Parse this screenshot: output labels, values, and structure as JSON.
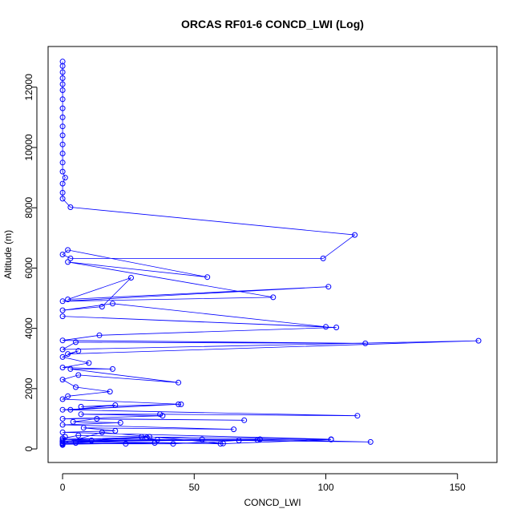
{
  "chart_data": {
    "type": "scatter",
    "title": "ORCAS RF01-6 CONCD_LWI (Log)",
    "xlabel": "CONCD_LWI",
    "ylabel": "Altitude (m)",
    "xlim": [
      -5.5,
      165
    ],
    "ylim": [
      -450,
      13350
    ],
    "xticks": [
      0,
      50,
      100,
      150
    ],
    "yticks": [
      0,
      2000,
      4000,
      6000,
      8000,
      10000,
      12000
    ],
    "series_color": "#0000ff",
    "grid": false,
    "legend": "none",
    "series": [
      {
        "style": "lines+points",
        "points": [
          [
            0,
            12850
          ],
          [
            0,
            12700
          ],
          [
            0,
            12500
          ],
          [
            0,
            12300
          ],
          [
            0,
            12100
          ],
          [
            0,
            11900
          ],
          [
            0,
            11600
          ],
          [
            0,
            11300
          ],
          [
            0,
            11000
          ],
          [
            0,
            10700
          ],
          [
            0,
            10400
          ],
          [
            0,
            10100
          ],
          [
            0,
            9800
          ],
          [
            0,
            9500
          ],
          [
            0,
            9200
          ],
          [
            1,
            9000
          ],
          [
            0,
            8800
          ],
          [
            0,
            8500
          ],
          [
            0,
            8300
          ],
          [
            3,
            8020
          ],
          [
            111,
            7100
          ],
          [
            99,
            6320
          ],
          [
            3,
            6320
          ],
          [
            0,
            6450
          ],
          [
            2,
            6600
          ],
          [
            55,
            5700
          ],
          [
            2,
            6200
          ],
          [
            80,
            5030
          ],
          [
            0,
            4900
          ],
          [
            101,
            5380
          ],
          [
            2,
            4960
          ],
          [
            26,
            5680
          ],
          [
            15,
            4720
          ],
          [
            0,
            4600
          ],
          [
            19,
            4820
          ],
          [
            100,
            4050
          ],
          [
            0,
            4400
          ],
          [
            104,
            4030
          ],
          [
            14,
            3770
          ],
          [
            0,
            3600
          ],
          [
            115,
            3500
          ],
          [
            5,
            3540
          ],
          [
            0,
            3300
          ],
          [
            158,
            3590
          ],
          [
            2,
            3150
          ],
          [
            6,
            3250
          ],
          [
            0,
            3050
          ],
          [
            10,
            2850
          ],
          [
            0,
            2700
          ],
          [
            19,
            2650
          ],
          [
            3,
            2650
          ],
          [
            44,
            2200
          ],
          [
            6,
            2450
          ],
          [
            0,
            2300
          ],
          [
            5,
            2050
          ],
          [
            18,
            1900
          ],
          [
            2,
            1750
          ],
          [
            0,
            1650
          ],
          [
            45,
            1480
          ],
          [
            7,
            1400
          ],
          [
            20,
            1450
          ],
          [
            3,
            1300
          ],
          [
            44,
            1480
          ],
          [
            0,
            1300
          ],
          [
            112,
            1100
          ],
          [
            37,
            1150
          ],
          [
            7,
            1150
          ],
          [
            38,
            1100
          ],
          [
            0,
            1000
          ],
          [
            69,
            950
          ],
          [
            13,
            1000
          ],
          [
            4,
            900
          ],
          [
            22,
            870
          ],
          [
            0,
            800
          ],
          [
            65,
            650
          ],
          [
            8,
            700
          ],
          [
            20,
            600
          ],
          [
            0,
            550
          ],
          [
            102,
            320
          ],
          [
            30,
            400
          ],
          [
            6,
            450
          ],
          [
            0,
            350
          ],
          [
            117,
            230
          ],
          [
            75,
            320
          ],
          [
            11,
            280
          ],
          [
            0,
            250
          ],
          [
            102,
            310
          ],
          [
            60,
            170
          ],
          [
            0,
            250
          ],
          [
            74,
            300
          ],
          [
            53,
            320
          ],
          [
            33,
            400
          ],
          [
            0,
            300
          ],
          [
            67,
            280
          ],
          [
            42,
            170
          ],
          [
            24,
            170
          ],
          [
            5,
            200
          ],
          [
            0,
            200
          ],
          [
            36,
            300
          ],
          [
            32,
            380
          ],
          [
            0,
            250
          ],
          [
            61,
            180
          ],
          [
            15,
            550
          ],
          [
            0,
            180
          ],
          [
            35,
            200
          ],
          [
            0,
            150
          ],
          [
            1,
            400
          ],
          [
            0,
            130
          ]
        ]
      }
    ]
  }
}
